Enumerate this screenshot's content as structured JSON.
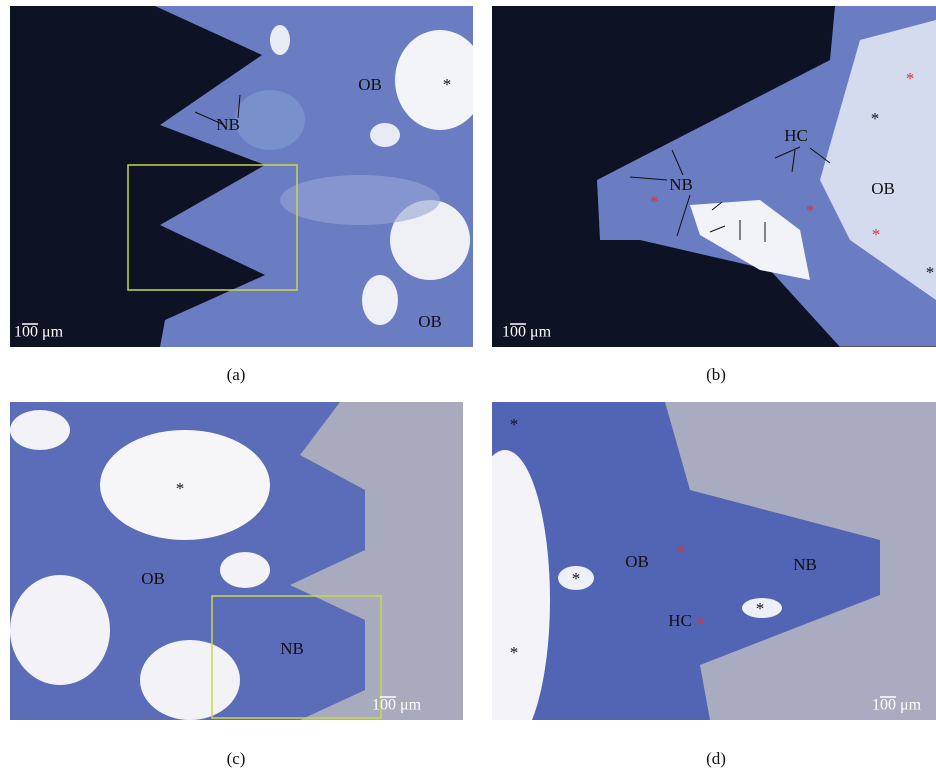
{
  "panels": [
    {
      "caption": "(a)",
      "scale_bar": "100 μm",
      "labels": [
        "OB",
        "NB",
        "*",
        "OB"
      ]
    },
    {
      "caption": "(b)",
      "scale_bar": "100 μm",
      "labels": [
        "HC",
        "NB",
        "OB",
        "*",
        "*",
        "*",
        "*",
        "*",
        "*"
      ]
    },
    {
      "caption": "(c)",
      "scale_bar": "100 μm",
      "labels": [
        "*",
        "OB",
        "NB"
      ]
    },
    {
      "caption": "(d)",
      "scale_bar": "100 μm",
      "labels": [
        "*",
        "*",
        "*",
        "OB",
        "NB",
        "HC",
        "*",
        "*",
        "*"
      ]
    }
  ]
}
